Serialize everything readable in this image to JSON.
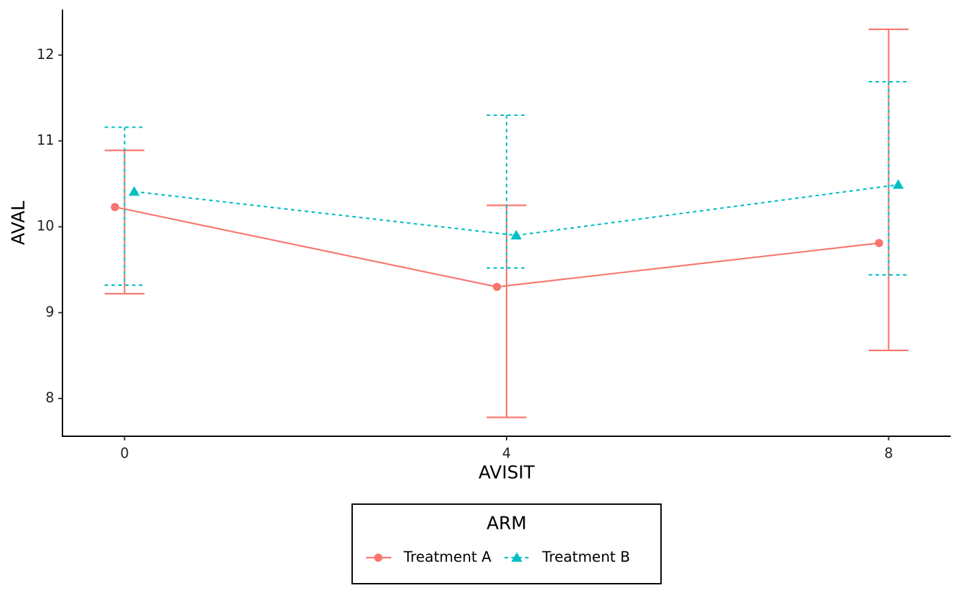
{
  "chart_data": {
    "type": "line",
    "x_label": "AVISIT",
    "y_label": "AVAL",
    "x": [
      0,
      4,
      8
    ],
    "xlim": [
      -0.65,
      8.65
    ],
    "xticks": [
      0,
      4,
      8
    ],
    "ylim": [
      7.56,
      12.53
    ],
    "yticks": [
      8,
      9,
      10,
      11,
      12
    ],
    "legend_title": "ARM",
    "legend_position": "bottom",
    "series": [
      {
        "name": "Treatment A",
        "color": "#F8766D",
        "dash": "solid",
        "marker": "circle",
        "values": [
          10.23,
          9.3,
          9.81
        ],
        "lower": [
          9.22,
          7.78,
          8.56
        ],
        "upper": [
          10.89,
          10.25,
          12.3
        ]
      },
      {
        "name": "Treatment B",
        "color": "#00BFC4",
        "dash": "dotted",
        "marker": "triangle",
        "values": [
          10.41,
          9.9,
          10.49
        ],
        "lower": [
          9.32,
          9.52,
          9.44
        ],
        "upper": [
          11.16,
          11.3,
          11.69
        ]
      }
    ]
  }
}
